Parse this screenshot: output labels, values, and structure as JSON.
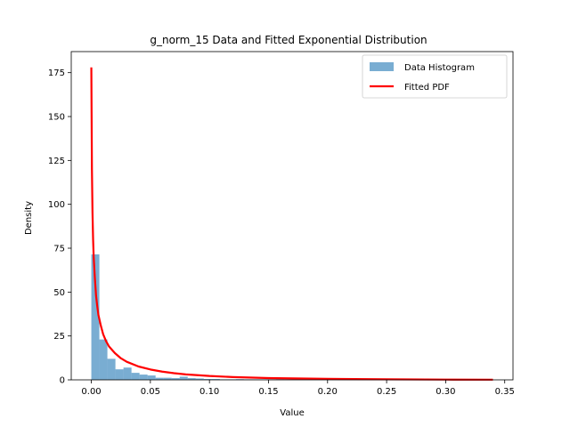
{
  "chart_data": {
    "type": "bar",
    "title": "g_norm_15 Data and Fitted Exponential Distribution",
    "xlabel": "Value",
    "ylabel": "Density",
    "xlim": [
      -0.017,
      0.357
    ],
    "ylim": [
      0,
      187
    ],
    "xticks": [
      0.0,
      0.05,
      0.1,
      0.15,
      0.2,
      0.25,
      0.3,
      0.35
    ],
    "xtick_labels": [
      "0.00",
      "0.05",
      "0.10",
      "0.15",
      "0.20",
      "0.25",
      "0.30",
      "0.35"
    ],
    "yticks": [
      0,
      25,
      50,
      75,
      100,
      125,
      150,
      175
    ],
    "ytick_labels": [
      "0",
      "25",
      "50",
      "75",
      "100",
      "125",
      "150",
      "175"
    ],
    "grid": false,
    "legend_position": "top-right",
    "series": [
      {
        "name": "Data Histogram",
        "type": "histogram",
        "color": "#1f77b4",
        "opacity": 0.6,
        "bin_width": 0.0068,
        "bin_starts": [
          0.0,
          0.0068,
          0.0136,
          0.0204,
          0.0272,
          0.034,
          0.0408,
          0.0476,
          0.0544,
          0.0612,
          0.068,
          0.0748,
          0.0816,
          0.0884,
          0.0952,
          0.102,
          0.1088,
          0.1156,
          0.1224,
          0.1292,
          0.136,
          0.1428,
          0.1496,
          0.1564,
          0.1632,
          0.17,
          0.1768,
          0.1836,
          0.1904,
          0.1972,
          0.204,
          0.2108,
          0.2176,
          0.2244,
          0.2312,
          0.238,
          0.2448,
          0.2516,
          0.2584,
          0.2652,
          0.272,
          0.2788,
          0.2856,
          0.2924,
          0.2992,
          0.306,
          0.3128,
          0.3196,
          0.3264,
          0.3332
        ],
        "values": [
          71.5,
          23.0,
          12.0,
          6.0,
          7.0,
          4.0,
          3.0,
          2.5,
          1.2,
          1.2,
          1.0,
          1.8,
          1.0,
          0.8,
          0.5,
          0.5,
          0.3,
          0.3,
          0.4,
          0.3,
          0.3,
          0.3,
          0.3,
          0.4,
          0.3,
          0.2,
          0.2,
          0.3,
          0.3,
          0.2,
          0.1,
          0.1,
          0.2,
          0.1,
          0.4,
          0.1,
          0.1,
          0.1,
          0.1,
          0.1,
          0.1,
          0.1,
          0.1,
          0.1,
          0.1,
          0.1,
          0.1,
          0.1,
          0.1,
          0.1
        ]
      },
      {
        "name": "Fitted PDF",
        "type": "line",
        "color": "#ff0000",
        "x": [
          0.0,
          0.0005,
          0.001,
          0.0015,
          0.002,
          0.003,
          0.004,
          0.005,
          0.006,
          0.008,
          0.01,
          0.0125,
          0.015,
          0.02,
          0.025,
          0.03,
          0.04,
          0.05,
          0.06,
          0.07,
          0.08,
          0.1,
          0.12,
          0.15,
          0.2,
          0.25,
          0.3,
          0.34
        ],
        "y": [
          178,
          120,
          95,
          80,
          70,
          58,
          48,
          42,
          37,
          31,
          26,
          22,
          19,
          15.2,
          12.3,
          10.3,
          7.6,
          5.9,
          4.7,
          3.8,
          3.1,
          2.2,
          1.6,
          1.0,
          0.55,
          0.3,
          0.15,
          0.1
        ]
      }
    ]
  }
}
